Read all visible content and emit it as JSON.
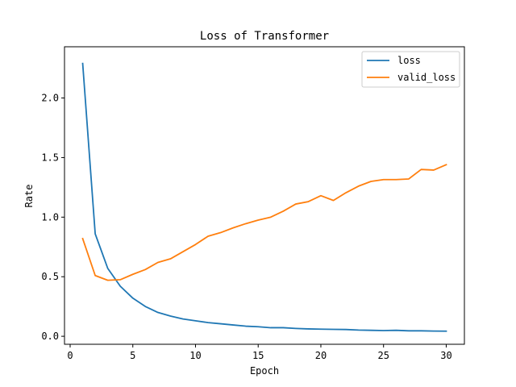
{
  "chart_data": {
    "type": "line",
    "title": "Loss of Transformer",
    "xlabel": "Epoch",
    "ylabel": "Rate",
    "xlim": [
      -0.45,
      31.45
    ],
    "ylim": [
      -0.067,
      2.43
    ],
    "xticks": [
      0,
      5,
      10,
      15,
      20,
      25,
      30
    ],
    "yticks": [
      0.0,
      0.5,
      1.0,
      1.5,
      2.0
    ],
    "ytick_labels": [
      "0.0",
      "0.5",
      "1.0",
      "1.5",
      "2.0"
    ],
    "legend_position": "upper right",
    "grid": false,
    "x": [
      1,
      2,
      3,
      4,
      5,
      6,
      7,
      8,
      9,
      10,
      11,
      12,
      13,
      14,
      15,
      16,
      17,
      18,
      19,
      20,
      21,
      22,
      23,
      24,
      25,
      26,
      27,
      28,
      29,
      30
    ],
    "series": [
      {
        "name": "loss",
        "color": "#1f77b4",
        "values": [
          2.29,
          0.86,
          0.57,
          0.42,
          0.32,
          0.25,
          0.2,
          0.17,
          0.145,
          0.13,
          0.115,
          0.105,
          0.095,
          0.085,
          0.08,
          0.072,
          0.072,
          0.066,
          0.062,
          0.06,
          0.058,
          0.057,
          0.052,
          0.05,
          0.048,
          0.05,
          0.046,
          0.046,
          0.044,
          0.043
        ]
      },
      {
        "name": "valid_loss",
        "color": "#ff7f0e",
        "values": [
          0.82,
          0.51,
          0.47,
          0.475,
          0.52,
          0.56,
          0.62,
          0.65,
          0.71,
          0.77,
          0.84,
          0.87,
          0.91,
          0.945,
          0.975,
          1.0,
          1.05,
          1.11,
          1.13,
          1.18,
          1.14,
          1.205,
          1.26,
          1.3,
          1.315,
          1.315,
          1.32,
          1.4,
          1.395,
          1.44
        ]
      }
    ]
  }
}
